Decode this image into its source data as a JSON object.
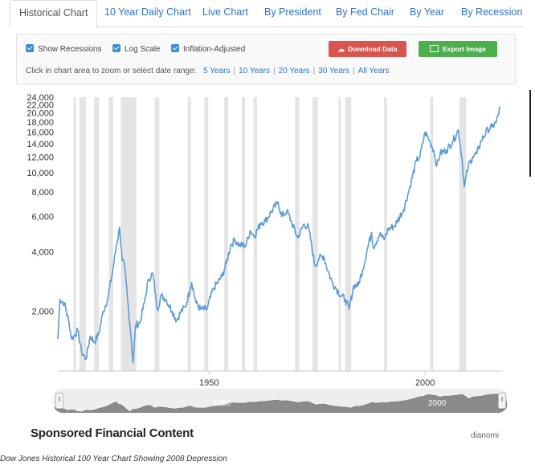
{
  "tabs": [
    "Historical Chart",
    "10 Year Daily Chart",
    "Live Chart",
    "By President",
    "By Fed Chair",
    "By Year",
    "By Recession"
  ],
  "options": {
    "show_recessions": "Show Recessions",
    "log_scale": "Log Scale",
    "inflation_adjusted": "Inflation-Adjusted"
  },
  "buttons": {
    "download": "Download Data",
    "export": "Export Image"
  },
  "zoom": {
    "prompt": "Click in chart area to zoom or select date range:",
    "ranges": [
      "5 Years",
      "10 Years",
      "20 Years",
      "30 Years",
      "All Years"
    ]
  },
  "navigator": {
    "labels": [
      "1950",
      "2000"
    ]
  },
  "sponsored": {
    "title": "Sponsored Financial Content",
    "brand": "dianomi"
  },
  "caption": "Dow Jones Historical 100 Year Chart Showing 2008 Depression",
  "colors": {
    "line": "#5b9bd5",
    "recession": "#e4e4e4",
    "tab_link": "#2c73c9",
    "download": "#d9534f",
    "export": "#4cae4c"
  },
  "chart_data": {
    "type": "line",
    "y_scale": "log",
    "ylim": [
      1000,
      24000
    ],
    "xlim": [
      1915,
      2018
    ],
    "y_ticks": [
      2000,
      4000,
      6000,
      8000,
      10000,
      12000,
      14000,
      16000,
      18000,
      20000,
      22000,
      24000
    ],
    "y_tick_labels": [
      "2,000",
      "4,000",
      "6,000",
      "8,000",
      "10,000",
      "12,000",
      "14,000",
      "16,000",
      "18,000",
      "20,000",
      "22,000",
      "24,000"
    ],
    "x_ticks": [
      1950,
      2000
    ],
    "x_tick_labels": [
      "1950",
      "2000"
    ],
    "recessions": [
      [
        1918.6,
        1919.2
      ],
      [
        1920.0,
        1921.5
      ],
      [
        1923.4,
        1924.5
      ],
      [
        1926.8,
        1927.8
      ],
      [
        1929.6,
        1933.2
      ],
      [
        1937.4,
        1938.5
      ],
      [
        1945.1,
        1945.8
      ],
      [
        1948.9,
        1949.8
      ],
      [
        1953.5,
        1954.4
      ],
      [
        1957.6,
        1958.3
      ],
      [
        1960.3,
        1961.1
      ],
      [
        1969.9,
        1970.9
      ],
      [
        1973.9,
        1975.2
      ],
      [
        1980.0,
        1980.5
      ],
      [
        1981.5,
        1982.9
      ],
      [
        1990.5,
        1991.2
      ],
      [
        2001.2,
        2001.9
      ],
      [
        2007.9,
        2009.5
      ]
    ],
    "series": [
      {
        "values": [
          [
            1915,
            1450
          ],
          [
            1915.5,
            2300
          ],
          [
            1916.5,
            2200
          ],
          [
            1917.6,
            1750
          ],
          [
            1918.2,
            1450
          ],
          [
            1919.6,
            1600
          ],
          [
            1920.5,
            1250
          ],
          [
            1921.5,
            1150
          ],
          [
            1922.5,
            1500
          ],
          [
            1923.5,
            1400
          ],
          [
            1924.5,
            1550
          ],
          [
            1925.5,
            2000
          ],
          [
            1926.5,
            2300
          ],
          [
            1927.5,
            3000
          ],
          [
            1928.5,
            4200
          ],
          [
            1929.3,
            5300
          ],
          [
            1929.9,
            3600
          ],
          [
            1930.5,
            3300
          ],
          [
            1931.3,
            2100
          ],
          [
            1932.0,
            1450
          ],
          [
            1932.4,
            1100
          ],
          [
            1933.0,
            1700
          ],
          [
            1934.0,
            1750
          ],
          [
            1935.0,
            2200
          ],
          [
            1936.0,
            2900
          ],
          [
            1937.0,
            3100
          ],
          [
            1938.0,
            2050
          ],
          [
            1939.0,
            2400
          ],
          [
            1940.0,
            2300
          ],
          [
            1941.5,
            2000
          ],
          [
            1942.5,
            1800
          ],
          [
            1943.5,
            2000
          ],
          [
            1944.5,
            2100
          ],
          [
            1946.0,
            2800
          ],
          [
            1947.0,
            2200
          ],
          [
            1948.0,
            2050
          ],
          [
            1949.5,
            2050
          ],
          [
            1951.0,
            2600
          ],
          [
            1953.0,
            3000
          ],
          [
            1954.0,
            3500
          ],
          [
            1955.0,
            4300
          ],
          [
            1956.0,
            4600
          ],
          [
            1957.0,
            4300
          ],
          [
            1958.5,
            4300
          ],
          [
            1959.5,
            5100
          ],
          [
            1960.5,
            4800
          ],
          [
            1962.0,
            5600
          ],
          [
            1963.0,
            5700
          ],
          [
            1964.5,
            6400
          ],
          [
            1966.0,
            7100
          ],
          [
            1966.8,
            6000
          ],
          [
            1968.0,
            6400
          ],
          [
            1969.0,
            5700
          ],
          [
            1970.5,
            4700
          ],
          [
            1972.0,
            5500
          ],
          [
            1973.0,
            5300
          ],
          [
            1974.5,
            3400
          ],
          [
            1975.5,
            3700
          ],
          [
            1976.5,
            3800
          ],
          [
            1977.5,
            3200
          ],
          [
            1978.5,
            2800
          ],
          [
            1979.5,
            2600
          ],
          [
            1980.5,
            2400
          ],
          [
            1981.5,
            2300
          ],
          [
            1982.4,
            2050
          ],
          [
            1983.5,
            2700
          ],
          [
            1984.5,
            2700
          ],
          [
            1985.5,
            3200
          ],
          [
            1986.5,
            4000
          ],
          [
            1987.6,
            5000
          ],
          [
            1988.0,
            4200
          ],
          [
            1989.5,
            4900
          ],
          [
            1990.5,
            4600
          ],
          [
            1991.5,
            5200
          ],
          [
            1993.0,
            5400
          ],
          [
            1995.0,
            6500
          ],
          [
            1996.5,
            8500
          ],
          [
            1998.0,
            11500
          ],
          [
            1998.8,
            12000
          ],
          [
            2000.0,
            16000
          ],
          [
            2001.0,
            14500
          ],
          [
            2002.0,
            13000
          ],
          [
            2002.7,
            10800
          ],
          [
            2003.5,
            12500
          ],
          [
            2005.0,
            13000
          ],
          [
            2006.5,
            14500
          ],
          [
            2007.7,
            16400
          ],
          [
            2008.5,
            12000
          ],
          [
            2009.1,
            8500
          ],
          [
            2010.0,
            10800
          ],
          [
            2011.0,
            12000
          ],
          [
            2012.0,
            12500
          ],
          [
            2013.0,
            14500
          ],
          [
            2014.5,
            16500
          ],
          [
            2015.5,
            17000
          ],
          [
            2016.5,
            18000
          ],
          [
            2017.4,
            21500
          ]
        ]
      }
    ]
  }
}
